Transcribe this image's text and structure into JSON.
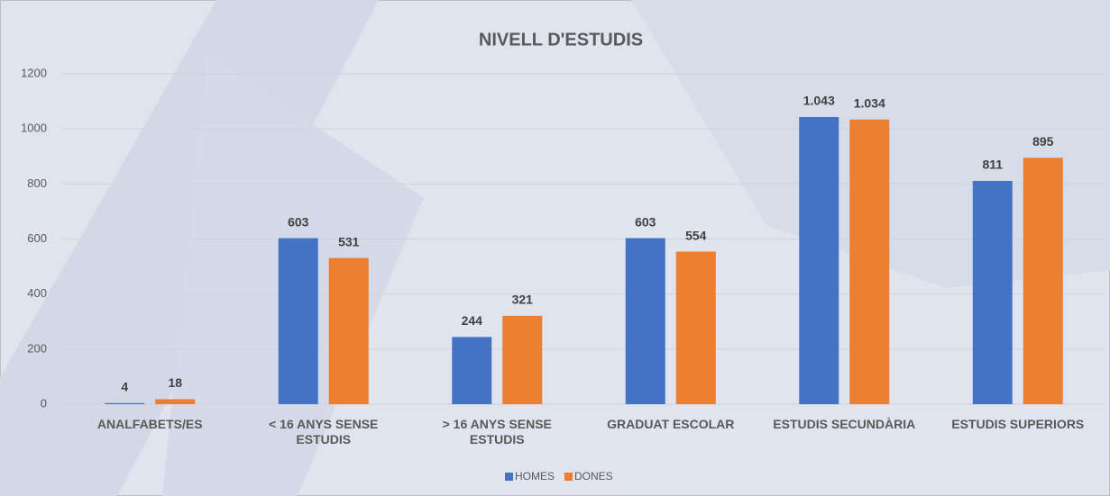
{
  "chart_data": {
    "type": "bar",
    "title": "NIVELL D'ESTUDIS",
    "categories": [
      "ANALFABETS/ES",
      "< 16 ANYS SENSE ESTUDIS",
      "> 16 ANYS SENSE ESTUDIS",
      "GRADUAT ESCOLAR",
      "ESTUDIS SECUNDÀRIA",
      "ESTUDIS SUPERIORS"
    ],
    "series": [
      {
        "name": "HOMES",
        "color": "#4472c4",
        "values": [
          4,
          603,
          244,
          603,
          1043,
          811
        ],
        "value_labels": [
          "4",
          "603",
          "244",
          "603",
          "1.043",
          "811"
        ]
      },
      {
        "name": "DONES",
        "color": "#ed7d31",
        "values": [
          18,
          531,
          321,
          554,
          1034,
          895
        ],
        "value_labels": [
          "18",
          "531",
          "321",
          "554",
          "1.034",
          "895"
        ]
      }
    ],
    "ylim": [
      0,
      1200
    ],
    "yticks": [
      0,
      200,
      400,
      600,
      800,
      1000,
      1200
    ],
    "grid": true,
    "legend": "bottom"
  }
}
